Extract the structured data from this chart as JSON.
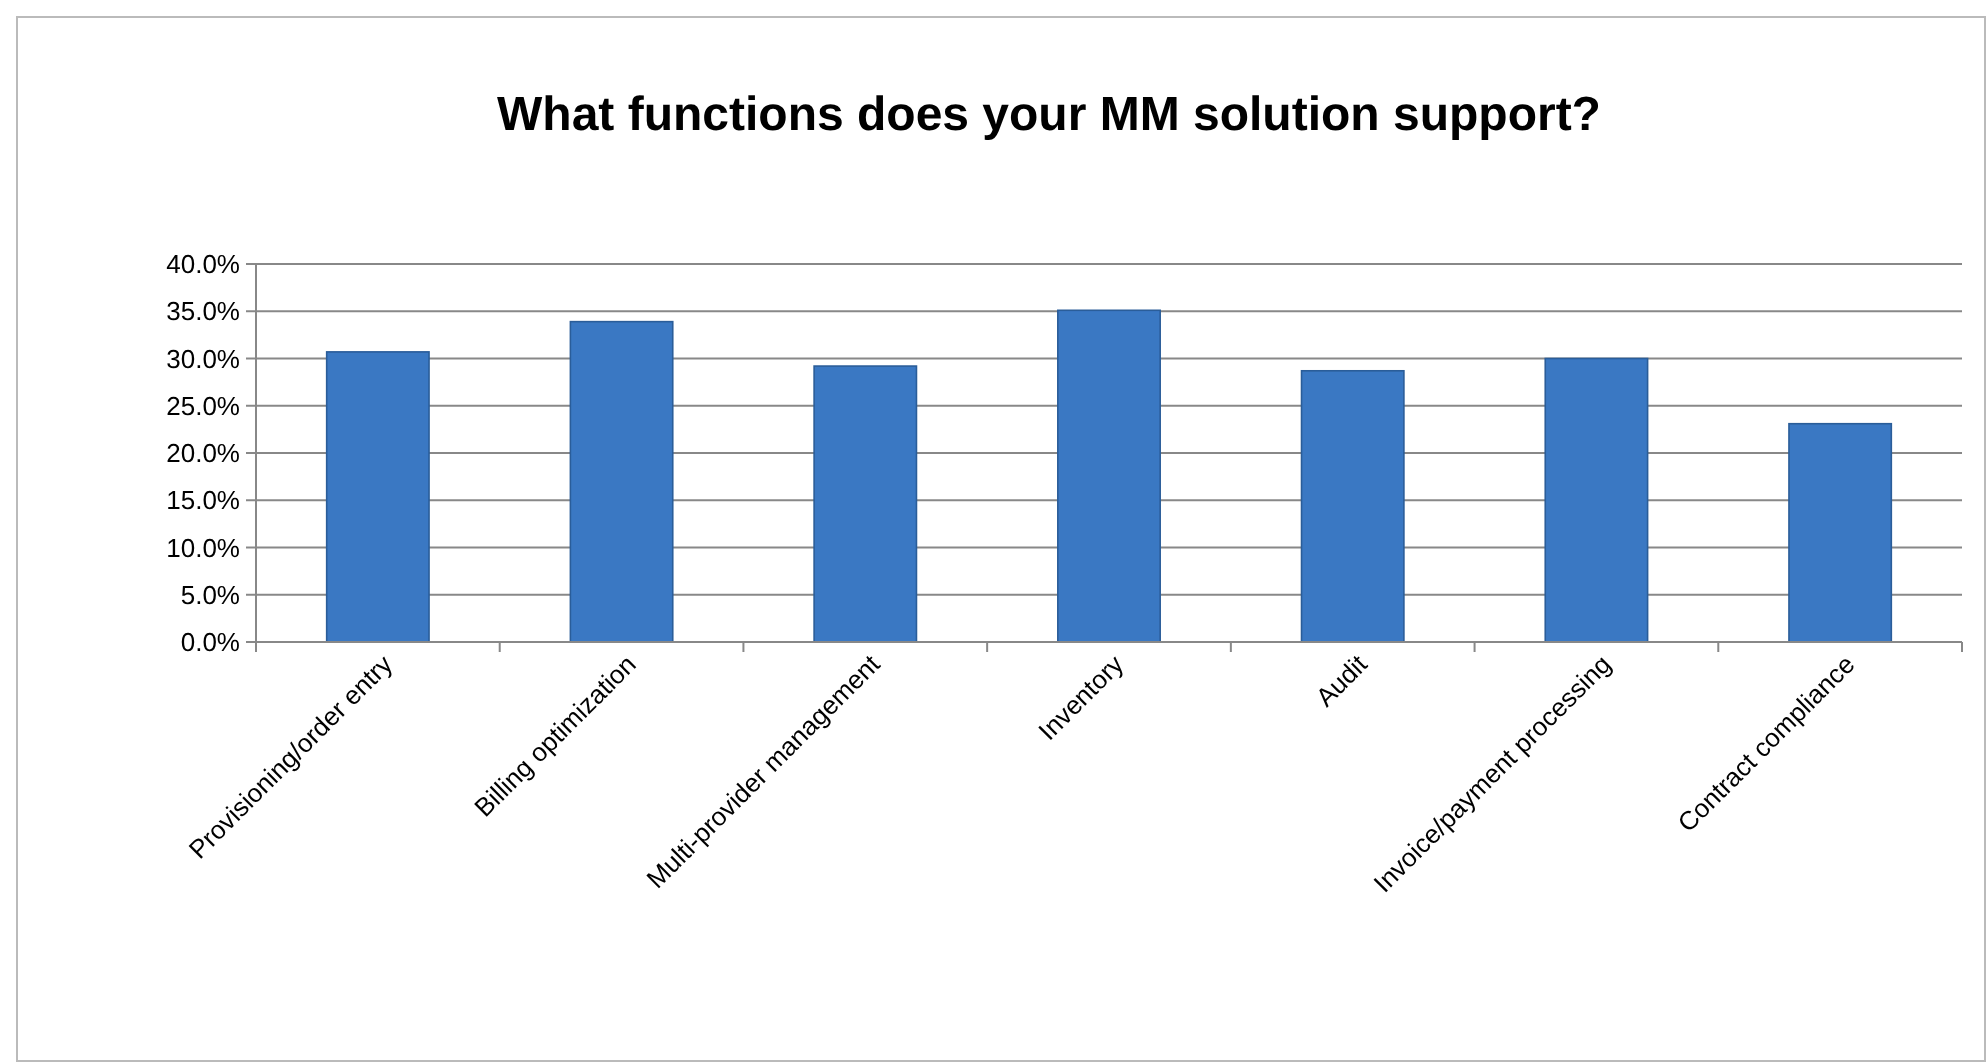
{
  "chart_data": {
    "type": "bar",
    "title": "What functions does your MM solution support?",
    "categories": [
      "Provisioning/order entry",
      "Billing optimization",
      "Multi-provider management",
      "Inventory",
      "Audit",
      "Invoice/payment processing",
      "Contract compliance"
    ],
    "values": [
      30.7,
      33.9,
      29.2,
      35.1,
      28.7,
      30.0,
      23.1
    ],
    "color": "#3a78c3",
    "ylim": [
      0,
      40
    ],
    "yticks": [
      {
        "value": 0,
        "label": "0.0%"
      },
      {
        "value": 5,
        "label": "5.0%"
      },
      {
        "value": 10,
        "label": "10.0%"
      },
      {
        "value": 15,
        "label": "15.0%"
      },
      {
        "value": 20,
        "label": "20.0%"
      },
      {
        "value": 25,
        "label": "25.0%"
      },
      {
        "value": 30,
        "label": "30.0%"
      },
      {
        "value": 35,
        "label": "35.0%"
      },
      {
        "value": 40,
        "label": "40.0%"
      }
    ],
    "grid": "y"
  }
}
